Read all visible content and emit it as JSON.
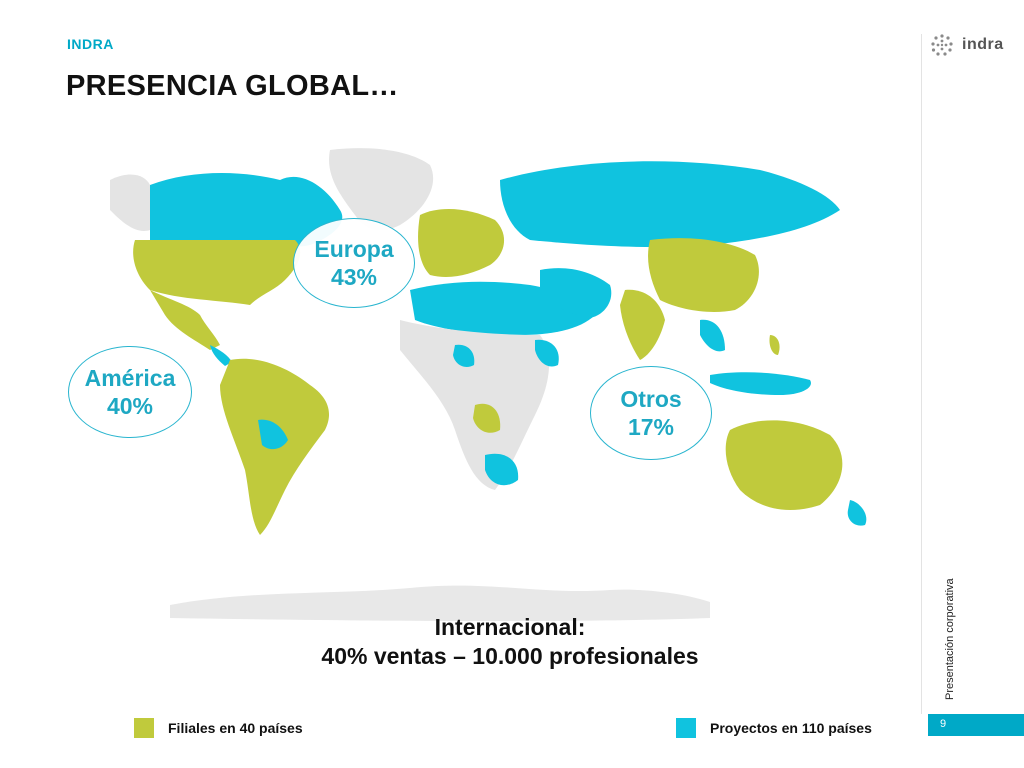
{
  "header": {
    "brand_small": "INDRA",
    "title": "PRESENCIA GLOBAL…",
    "logo_text": "indra"
  },
  "regions": {
    "europa": {
      "label": "Europa",
      "value": "43%"
    },
    "america": {
      "label": "América",
      "value": "40%"
    },
    "otros": {
      "label": "Otros",
      "value": "17%"
    }
  },
  "international": {
    "line1": "Internacional:",
    "line2": "40% ventas – 10.000 profesionales"
  },
  "legend": {
    "filiales": {
      "label": "Filiales en 40 países",
      "color": "#c0ca3c"
    },
    "proyectos": {
      "label": "Proyectos en 110 países",
      "color": "#10c3df"
    }
  },
  "sidebar": {
    "label": "Presentación corporativa",
    "page_number": "9"
  },
  "map_colors": {
    "filiales": "#c0ca3c",
    "proyectos": "#10c3df",
    "other": "#e4e4e4"
  }
}
